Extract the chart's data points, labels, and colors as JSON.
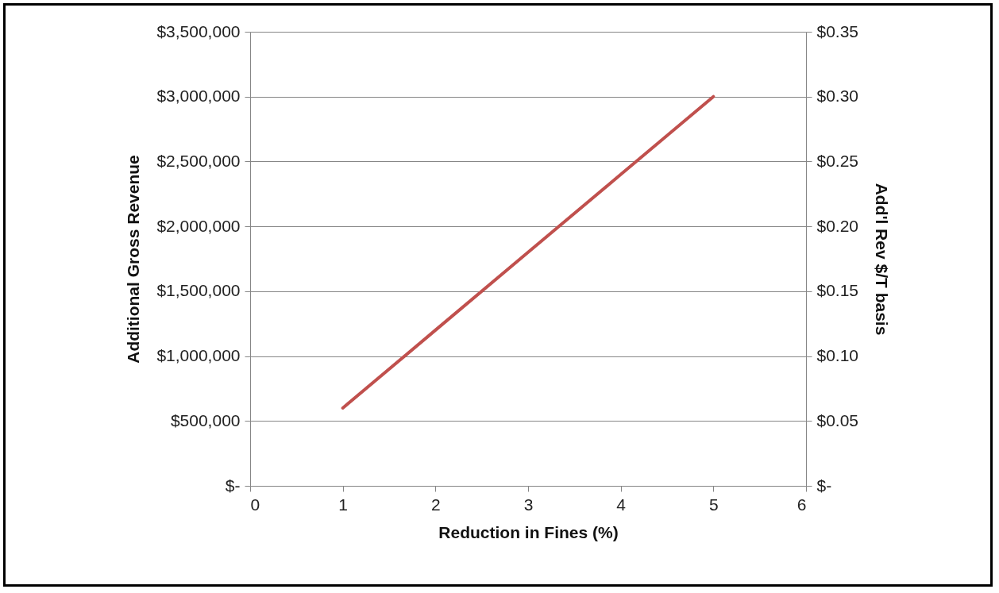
{
  "chart_data": {
    "type": "line",
    "xlabel": "Reduction in Fines (%)",
    "ylabel": "Additional Gross Revenue",
    "y2label": "Add'l Rev $/T basis",
    "x": [
      1,
      2,
      3,
      4,
      5
    ],
    "series": [
      {
        "color": "#c0504d",
        "values": [
          600000,
          1200000,
          1800000,
          2400000,
          3000000
        ]
      }
    ],
    "xlim": [
      0,
      6
    ],
    "xticks": [
      0,
      1,
      2,
      3,
      4,
      5,
      6
    ],
    "ylim": [
      0,
      3500000
    ],
    "yticks": [
      {
        "value": 0,
        "label": "$-"
      },
      {
        "value": 500000,
        "label": "$500,000"
      },
      {
        "value": 1000000,
        "label": "$1,000,000"
      },
      {
        "value": 1500000,
        "label": "$1,500,000"
      },
      {
        "value": 2000000,
        "label": "$2,000,000"
      },
      {
        "value": 2500000,
        "label": "$2,500,000"
      },
      {
        "value": 3000000,
        "label": "$3,000,000"
      },
      {
        "value": 3500000,
        "label": "$3,500,000"
      }
    ],
    "y2lim": [
      0,
      0.35
    ],
    "y2ticks": [
      {
        "value": 0,
        "label": "$-"
      },
      {
        "value": 0.05,
        "label": "$0.05"
      },
      {
        "value": 0.1,
        "label": "$0.10"
      },
      {
        "value": 0.15,
        "label": "$0.15"
      },
      {
        "value": 0.2,
        "label": "$0.20"
      },
      {
        "value": 0.25,
        "label": "$0.25"
      },
      {
        "value": 0.3,
        "label": "$0.30"
      },
      {
        "value": 0.35,
        "label": "$0.35"
      }
    ],
    "grid": "y",
    "marker": "none",
    "line_style": "solid"
  }
}
